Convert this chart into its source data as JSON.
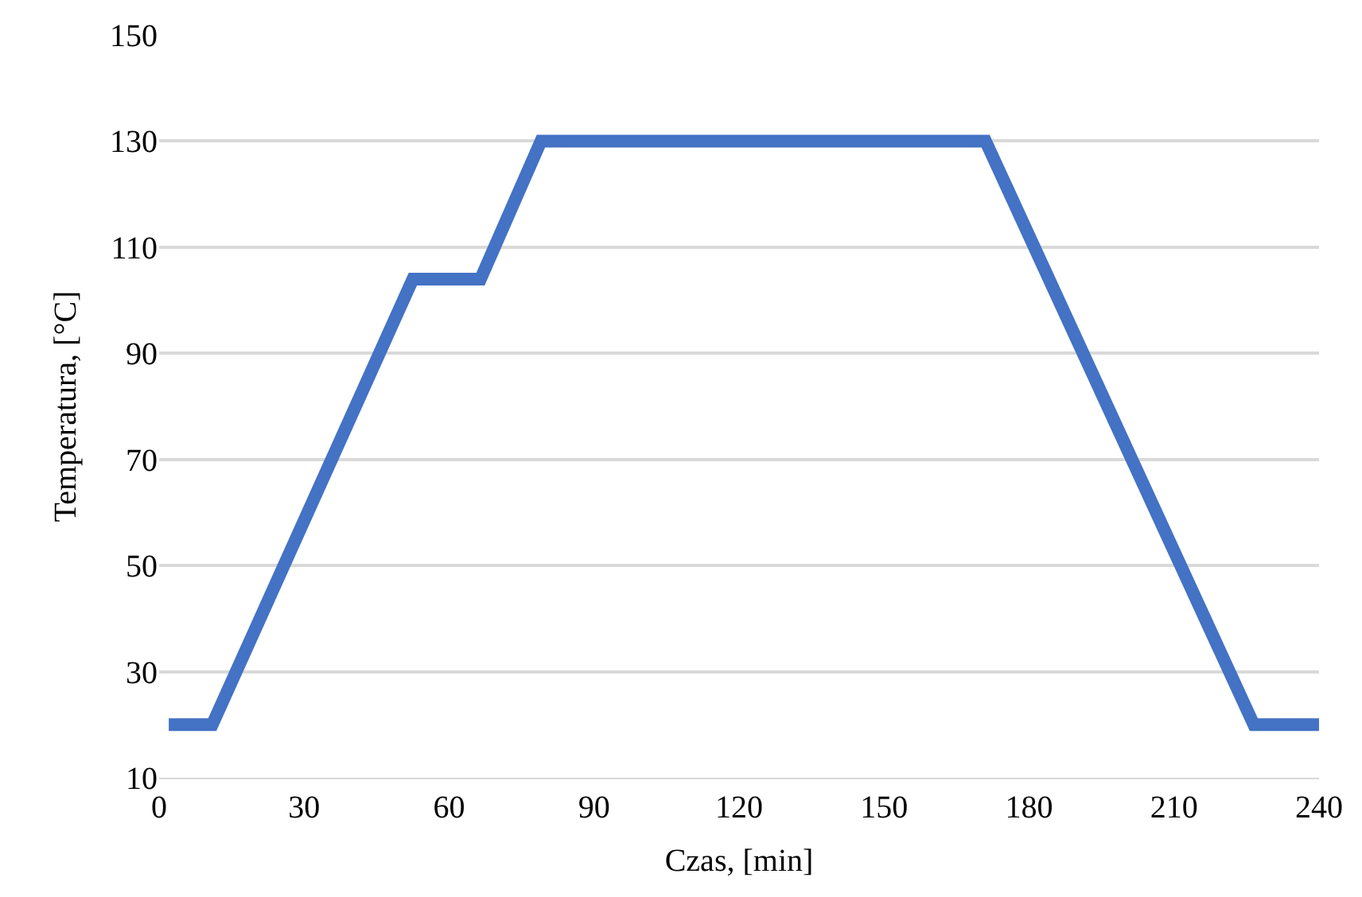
{
  "chart_data": {
    "type": "line",
    "xlabel": "Czas, [min]",
    "ylabel": "Temperatura, [°C]",
    "x": [
      2,
      11,
      52.5,
      66.5,
      79,
      171,
      226.5,
      240
    ],
    "series": [
      {
        "color": "#4472c4",
        "values": [
          20,
          20,
          104,
          104,
          130,
          130,
          20,
          20
        ]
      }
    ],
    "xlim": [
      0,
      240
    ],
    "xticks": [
      0,
      30,
      60,
      90,
      120,
      150,
      180,
      210,
      240
    ],
    "ylim": [
      10,
      150
    ],
    "yticks": [
      10,
      30,
      50,
      70,
      90,
      110,
      130,
      150
    ],
    "grid": "y",
    "legend": false,
    "marker": "none",
    "line_style": "solid"
  }
}
